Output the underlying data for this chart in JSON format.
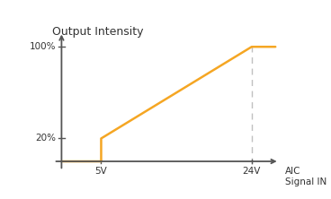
{
  "title": "Output Intensity",
  "xlabel_line1": "AIC",
  "xlabel_line2": "Signal IN",
  "line_color": "#F5A623",
  "dashed_color": "#C0C0C0",
  "axis_color": "#555555",
  "text_color": "#333333",
  "bg_color": "#FFFFFF",
  "x_points": [
    0,
    5,
    5,
    24,
    27
  ],
  "y_points": [
    0,
    0,
    20,
    100,
    100
  ],
  "x_5v": 5,
  "x_24v": 24,
  "y_20": 20,
  "y_100": 100,
  "tick_label_5v": "5V",
  "tick_label_24v": "24V",
  "tick_label_20": "20%",
  "tick_label_100": "100%",
  "line_width": 1.8,
  "xlim": [
    -1.5,
    29
  ],
  "ylim": [
    -12,
    120
  ]
}
